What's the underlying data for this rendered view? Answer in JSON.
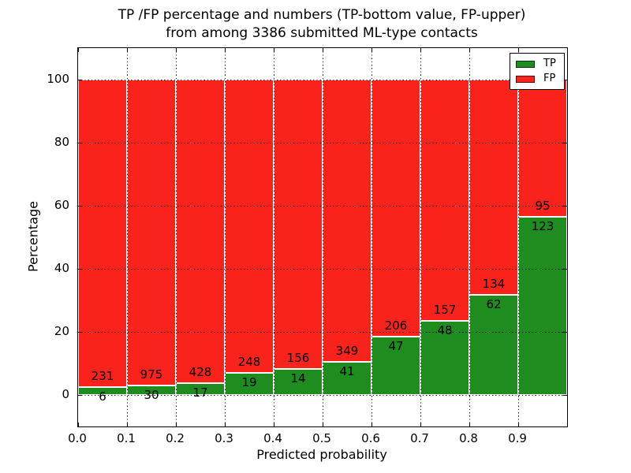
{
  "figure": {
    "title_line1": "TP /FP percentage and numbers (TP-bottom value, FP-upper)",
    "title_line2": "from among 3386 submitted ML-type contacts"
  },
  "chart_data": {
    "type": "bar",
    "stacked": true,
    "bars_normalized_to_percent": true,
    "title": "TP /FP percentage and numbers (TP-bottom value, FP-upper) from among 3386 submitted ML-type contacts",
    "xlabel": "Predicted probability",
    "ylabel": "Percentage",
    "categories": [
      "0.0",
      "0.1",
      "0.2",
      "0.3",
      "0.4",
      "0.5",
      "0.6",
      "0.7",
      "0.8",
      "0.9"
    ],
    "series": [
      {
        "name": "TP",
        "color": "#1e8c1e",
        "values": [
          6,
          30,
          17,
          19,
          14,
          41,
          47,
          48,
          62,
          123
        ]
      },
      {
        "name": "FP",
        "color": "#fa231b",
        "values": [
          231,
          975,
          428,
          248,
          156,
          349,
          206,
          157,
          134,
          95
        ]
      }
    ],
    "annotation_note": "each bar shows FP count above the TP/FP boundary and TP count below it",
    "total_contacts": 3386,
    "bar_total_percent": 100,
    "yticks": [
      0,
      20,
      40,
      60,
      80,
      100
    ],
    "xticks": [
      "0.0",
      "0.1",
      "0.2",
      "0.3",
      "0.4",
      "0.5",
      "0.6",
      "0.7",
      "0.8",
      "0.9"
    ],
    "ylim": [
      -10,
      110
    ],
    "xlim": [
      0.0,
      1.0
    ],
    "grid": true,
    "grid_style": "dotted",
    "legend_position": "upper right"
  },
  "legend": {
    "items": [
      {
        "label": "TP",
        "color": "#1e8c1e"
      },
      {
        "label": "FP",
        "color": "#fa231b"
      }
    ]
  }
}
